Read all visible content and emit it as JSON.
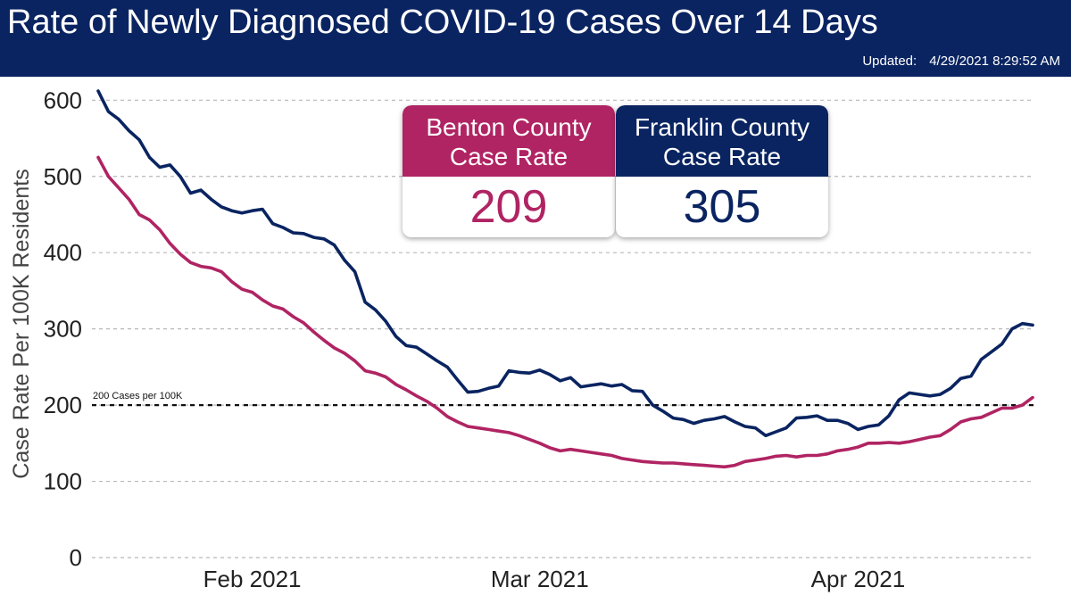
{
  "header": {
    "title": "Rate of Newly Diagnosed COVID-19 Cases Over 14 Days",
    "updated_label": "Updated:",
    "updated_value": "4/29/2021 8:29:52 AM",
    "background_color": "#0a2461"
  },
  "cards": {
    "benton": {
      "label_line1": "Benton County",
      "label_line2": "Case Rate",
      "value": "209",
      "color": "#b02463"
    },
    "franklin": {
      "label_line1": "Franklin County",
      "label_line2": "Case Rate",
      "value": "305",
      "color": "#0a2461"
    }
  },
  "chart_data": {
    "type": "line",
    "title": "",
    "xlabel": "",
    "ylabel": "Case Rate Per 100K Residents",
    "ylim": [
      0,
      620
    ],
    "yticks": [
      0,
      100,
      200,
      300,
      400,
      500,
      600
    ],
    "grid": "horizontal dashed",
    "x_start": "2021-01-17",
    "xticks": [
      {
        "date": "2021-02-01",
        "label": "Feb 2021"
      },
      {
        "date": "2021-03-01",
        "label": "Mar 2021"
      },
      {
        "date": "2021-04-01",
        "label": "Apr 2021"
      }
    ],
    "reference_line": {
      "value": 200,
      "label": "200 Cases per 100K"
    },
    "series": [
      {
        "name": "Franklin County",
        "color": "#0a2461",
        "points": [
          [
            "2021-01-17",
            612
          ],
          [
            "2021-01-18",
            585
          ],
          [
            "2021-01-19",
            575
          ],
          [
            "2021-01-20",
            560
          ],
          [
            "2021-01-21",
            548
          ],
          [
            "2021-01-22",
            525
          ],
          [
            "2021-01-23",
            512
          ],
          [
            "2021-01-24",
            515
          ],
          [
            "2021-01-25",
            500
          ],
          [
            "2021-01-26",
            478
          ],
          [
            "2021-01-27",
            482
          ],
          [
            "2021-01-28",
            470
          ],
          [
            "2021-01-29",
            460
          ],
          [
            "2021-01-30",
            455
          ],
          [
            "2021-01-31",
            452
          ],
          [
            "2021-02-01",
            455
          ],
          [
            "2021-02-02",
            457
          ],
          [
            "2021-02-03",
            438
          ],
          [
            "2021-02-04",
            433
          ],
          [
            "2021-02-05",
            426
          ],
          [
            "2021-02-06",
            425
          ],
          [
            "2021-02-07",
            420
          ],
          [
            "2021-02-08",
            418
          ],
          [
            "2021-02-09",
            410
          ],
          [
            "2021-02-10",
            390
          ],
          [
            "2021-02-11",
            375
          ],
          [
            "2021-02-12",
            335
          ],
          [
            "2021-02-13",
            325
          ],
          [
            "2021-02-14",
            310
          ],
          [
            "2021-02-15",
            290
          ],
          [
            "2021-02-16",
            278
          ],
          [
            "2021-02-17",
            276
          ],
          [
            "2021-02-18",
            267
          ],
          [
            "2021-02-19",
            258
          ],
          [
            "2021-02-20",
            250
          ],
          [
            "2021-02-21",
            233
          ],
          [
            "2021-02-22",
            217
          ],
          [
            "2021-02-23",
            218
          ],
          [
            "2021-02-24",
            222
          ],
          [
            "2021-02-25",
            225
          ],
          [
            "2021-02-26",
            245
          ],
          [
            "2021-02-27",
            243
          ],
          [
            "2021-02-28",
            242
          ],
          [
            "2021-03-01",
            246
          ],
          [
            "2021-03-02",
            240
          ],
          [
            "2021-03-03",
            232
          ],
          [
            "2021-03-04",
            236
          ],
          [
            "2021-03-05",
            224
          ],
          [
            "2021-03-06",
            226
          ],
          [
            "2021-03-07",
            228
          ],
          [
            "2021-03-08",
            225
          ],
          [
            "2021-03-09",
            227
          ],
          [
            "2021-03-10",
            219
          ],
          [
            "2021-03-11",
            218
          ],
          [
            "2021-03-12",
            200
          ],
          [
            "2021-03-13",
            192
          ],
          [
            "2021-03-14",
            183
          ],
          [
            "2021-03-15",
            181
          ],
          [
            "2021-03-16",
            176
          ],
          [
            "2021-03-17",
            180
          ],
          [
            "2021-03-18",
            182
          ],
          [
            "2021-03-19",
            185
          ],
          [
            "2021-03-20",
            178
          ],
          [
            "2021-03-21",
            172
          ],
          [
            "2021-03-22",
            170
          ],
          [
            "2021-03-23",
            160
          ],
          [
            "2021-03-24",
            165
          ],
          [
            "2021-03-25",
            170
          ],
          [
            "2021-03-26",
            183
          ],
          [
            "2021-03-27",
            184
          ],
          [
            "2021-03-28",
            186
          ],
          [
            "2021-03-29",
            180
          ],
          [
            "2021-03-30",
            180
          ],
          [
            "2021-03-31",
            176
          ],
          [
            "2021-04-01",
            168
          ],
          [
            "2021-04-02",
            172
          ],
          [
            "2021-04-03",
            174
          ],
          [
            "2021-04-04",
            186
          ],
          [
            "2021-04-05",
            207
          ],
          [
            "2021-04-06",
            216
          ],
          [
            "2021-04-07",
            214
          ],
          [
            "2021-04-08",
            212
          ],
          [
            "2021-04-09",
            214
          ],
          [
            "2021-04-10",
            222
          ],
          [
            "2021-04-11",
            235
          ],
          [
            "2021-04-12",
            238
          ],
          [
            "2021-04-13",
            260
          ],
          [
            "2021-04-14",
            270
          ],
          [
            "2021-04-15",
            280
          ],
          [
            "2021-04-16",
            300
          ],
          [
            "2021-04-17",
            307
          ],
          [
            "2021-04-18",
            305
          ]
        ]
      },
      {
        "name": "Benton County",
        "color": "#b02463",
        "points": [
          [
            "2021-01-17",
            525
          ],
          [
            "2021-01-18",
            500
          ],
          [
            "2021-01-19",
            485
          ],
          [
            "2021-01-20",
            470
          ],
          [
            "2021-01-21",
            450
          ],
          [
            "2021-01-22",
            443
          ],
          [
            "2021-01-23",
            430
          ],
          [
            "2021-01-24",
            412
          ],
          [
            "2021-01-25",
            398
          ],
          [
            "2021-01-26",
            387
          ],
          [
            "2021-01-27",
            382
          ],
          [
            "2021-01-28",
            380
          ],
          [
            "2021-01-29",
            375
          ],
          [
            "2021-01-30",
            362
          ],
          [
            "2021-01-31",
            352
          ],
          [
            "2021-02-01",
            348
          ],
          [
            "2021-02-02",
            338
          ],
          [
            "2021-02-03",
            330
          ],
          [
            "2021-02-04",
            326
          ],
          [
            "2021-02-05",
            316
          ],
          [
            "2021-02-06",
            308
          ],
          [
            "2021-02-07",
            296
          ],
          [
            "2021-02-08",
            285
          ],
          [
            "2021-02-09",
            275
          ],
          [
            "2021-02-10",
            268
          ],
          [
            "2021-02-11",
            258
          ],
          [
            "2021-02-12",
            245
          ],
          [
            "2021-02-13",
            242
          ],
          [
            "2021-02-14",
            237
          ],
          [
            "2021-02-15",
            227
          ],
          [
            "2021-02-16",
            220
          ],
          [
            "2021-02-17",
            212
          ],
          [
            "2021-02-18",
            205
          ],
          [
            "2021-02-19",
            196
          ],
          [
            "2021-02-20",
            185
          ],
          [
            "2021-02-21",
            178
          ],
          [
            "2021-02-22",
            172
          ],
          [
            "2021-02-23",
            170
          ],
          [
            "2021-02-24",
            168
          ],
          [
            "2021-02-25",
            166
          ],
          [
            "2021-02-26",
            164
          ],
          [
            "2021-02-27",
            160
          ],
          [
            "2021-02-28",
            155
          ],
          [
            "2021-03-01",
            150
          ],
          [
            "2021-03-02",
            144
          ],
          [
            "2021-03-03",
            140
          ],
          [
            "2021-03-04",
            142
          ],
          [
            "2021-03-05",
            140
          ],
          [
            "2021-03-06",
            138
          ],
          [
            "2021-03-07",
            136
          ],
          [
            "2021-03-08",
            134
          ],
          [
            "2021-03-09",
            130
          ],
          [
            "2021-03-10",
            128
          ],
          [
            "2021-03-11",
            126
          ],
          [
            "2021-03-12",
            125
          ],
          [
            "2021-03-13",
            124
          ],
          [
            "2021-03-14",
            124
          ],
          [
            "2021-03-15",
            123
          ],
          [
            "2021-03-16",
            122
          ],
          [
            "2021-03-17",
            121
          ],
          [
            "2021-03-18",
            120
          ],
          [
            "2021-03-19",
            119
          ],
          [
            "2021-03-20",
            121
          ],
          [
            "2021-03-21",
            126
          ],
          [
            "2021-03-22",
            128
          ],
          [
            "2021-03-23",
            130
          ],
          [
            "2021-03-24",
            133
          ],
          [
            "2021-03-25",
            134
          ],
          [
            "2021-03-26",
            132
          ],
          [
            "2021-03-27",
            134
          ],
          [
            "2021-03-28",
            134
          ],
          [
            "2021-03-29",
            136
          ],
          [
            "2021-03-30",
            140
          ],
          [
            "2021-03-31",
            142
          ],
          [
            "2021-04-01",
            145
          ],
          [
            "2021-04-02",
            150
          ],
          [
            "2021-04-03",
            150
          ],
          [
            "2021-04-04",
            151
          ],
          [
            "2021-04-05",
            150
          ],
          [
            "2021-04-06",
            152
          ],
          [
            "2021-04-07",
            155
          ],
          [
            "2021-04-08",
            158
          ],
          [
            "2021-04-09",
            160
          ],
          [
            "2021-04-10",
            168
          ],
          [
            "2021-04-11",
            178
          ],
          [
            "2021-04-12",
            182
          ],
          [
            "2021-04-13",
            184
          ],
          [
            "2021-04-14",
            190
          ],
          [
            "2021-04-15",
            196
          ],
          [
            "2021-04-16",
            196
          ],
          [
            "2021-04-17",
            200
          ],
          [
            "2021-04-18",
            210
          ]
        ]
      }
    ]
  }
}
